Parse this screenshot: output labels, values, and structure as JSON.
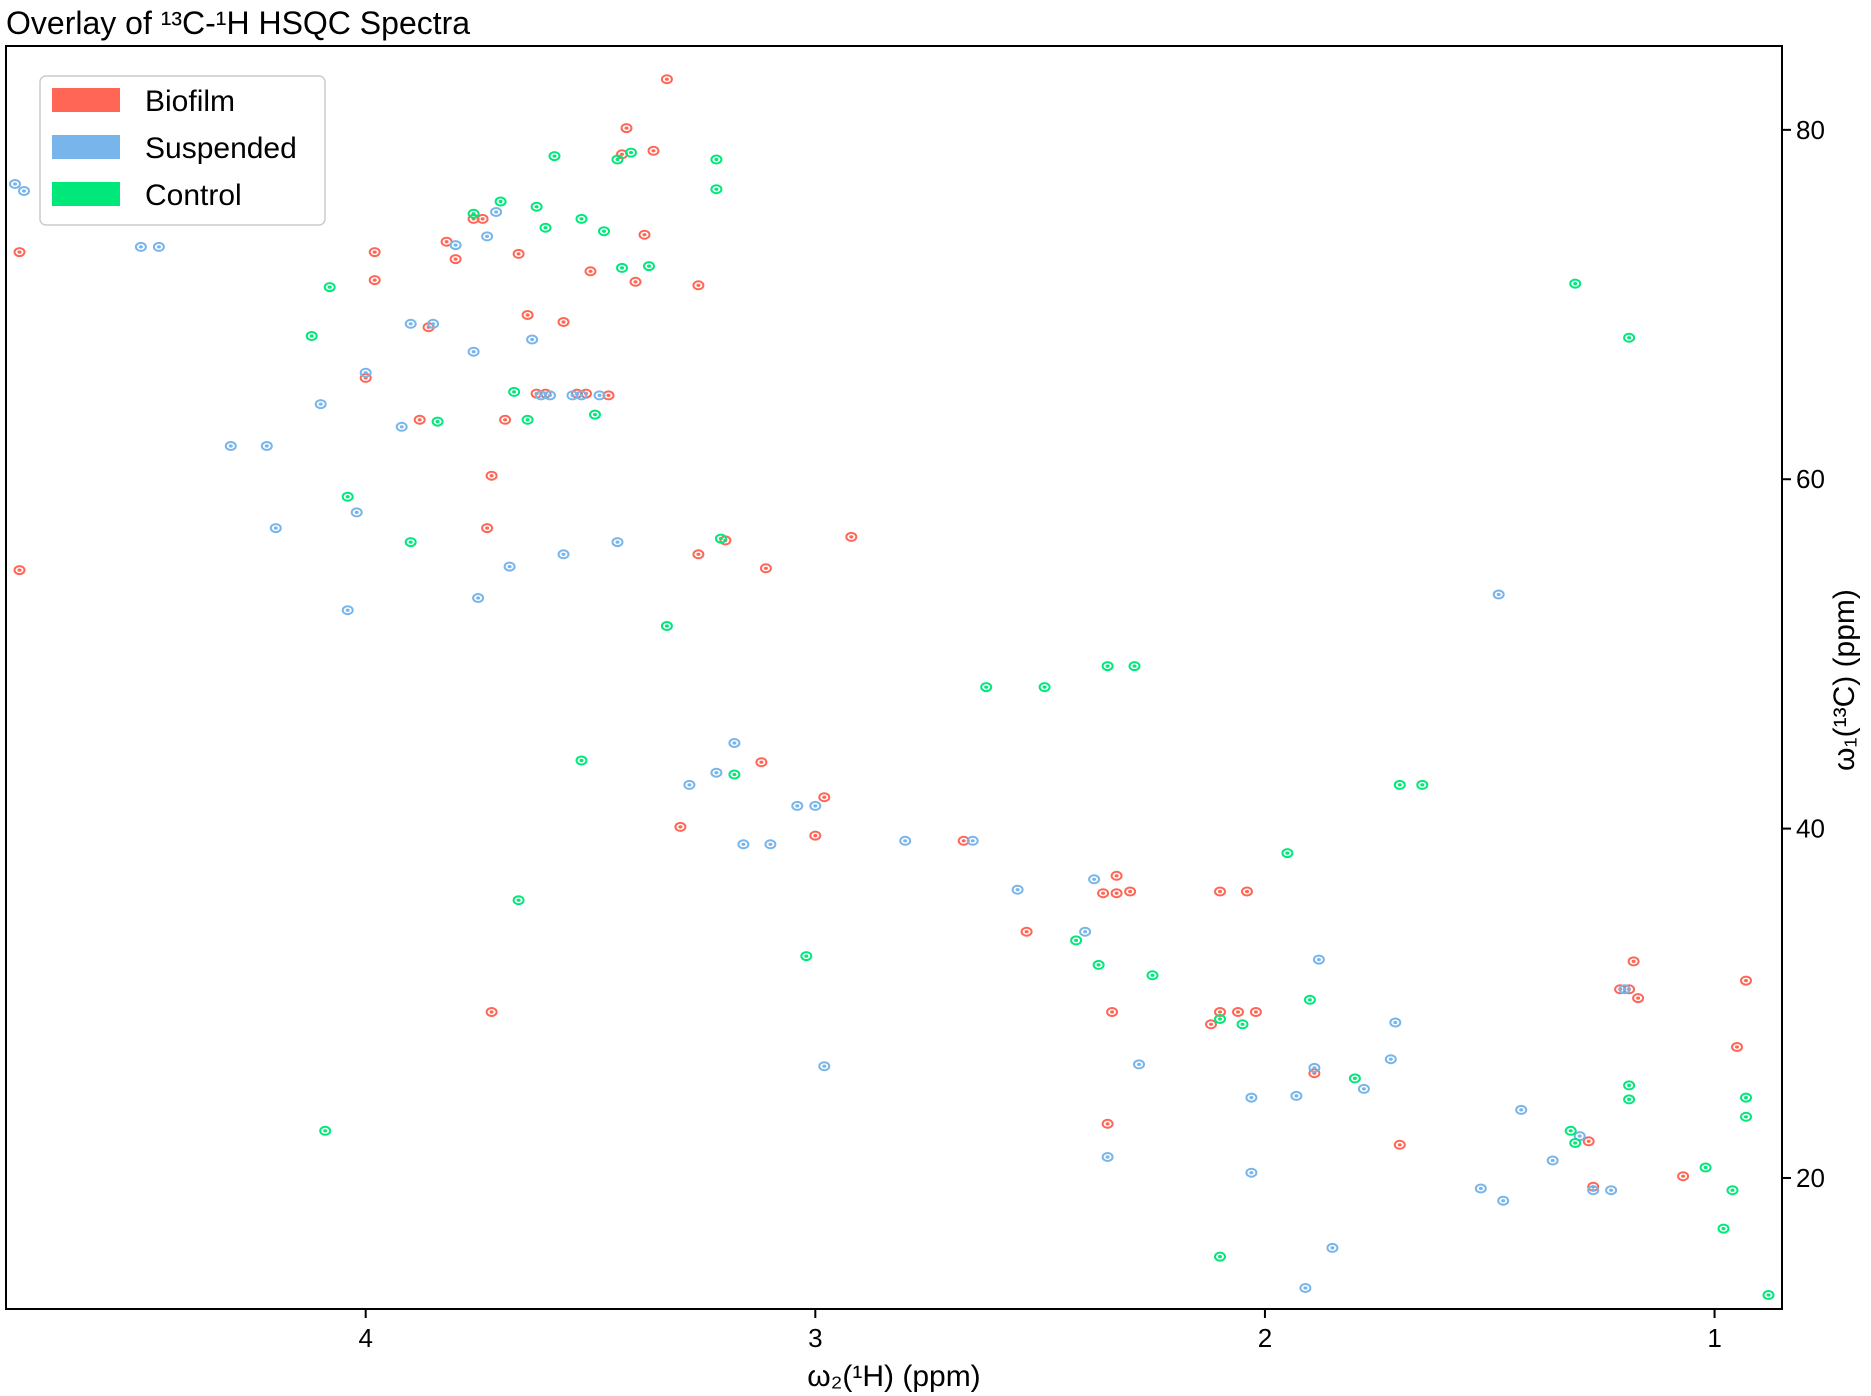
{
  "chart_data": {
    "type": "scatter",
    "title": "Overlay of ¹³C-¹H HSQC Spectra",
    "xlabel": "ω₂(¹H) (ppm)",
    "ylabel": "ω₁(¹³C) (ppm)",
    "xlim": [
      4.8,
      0.85
    ],
    "ylim": [
      84.8,
      12.5
    ],
    "x_reversed": true,
    "y_reversed": true,
    "y_axis_side": "right",
    "x_ticks": [
      4,
      3,
      2,
      1
    ],
    "y_ticks": [
      20,
      40,
      60,
      80
    ],
    "x_tick_labels": [
      "4",
      "3",
      "2",
      "1"
    ],
    "y_tick_labels": [
      "20",
      "40",
      "60",
      "80"
    ],
    "grid": false,
    "legend_position": "top-left",
    "series": [
      {
        "name": "Biofilm",
        "color": "#ff6655",
        "points": [
          [
            4.77,
            54.8
          ],
          [
            4.77,
            73.0
          ],
          [
            4.12,
            76.3
          ],
          [
            4.0,
            65.8
          ],
          [
            3.98,
            71.4
          ],
          [
            3.98,
            73.0
          ],
          [
            3.88,
            63.4
          ],
          [
            3.86,
            68.7
          ],
          [
            3.82,
            73.6
          ],
          [
            3.8,
            72.6
          ],
          [
            3.76,
            74.9
          ],
          [
            3.74,
            74.9
          ],
          [
            3.73,
            57.2
          ],
          [
            3.72,
            60.2
          ],
          [
            3.72,
            29.5
          ],
          [
            3.69,
            63.4
          ],
          [
            3.66,
            72.9
          ],
          [
            3.64,
            69.4
          ],
          [
            3.62,
            64.9
          ],
          [
            3.6,
            64.9
          ],
          [
            3.56,
            69.0
          ],
          [
            3.53,
            64.9
          ],
          [
            3.51,
            64.9
          ],
          [
            3.5,
            71.9
          ],
          [
            3.46,
            64.8
          ],
          [
            3.43,
            78.6
          ],
          [
            3.42,
            80.1
          ],
          [
            3.4,
            71.3
          ],
          [
            3.38,
            74.0
          ],
          [
            3.36,
            78.8
          ],
          [
            3.33,
            82.9
          ],
          [
            3.3,
            40.1
          ],
          [
            3.26,
            71.1
          ],
          [
            3.26,
            55.7
          ],
          [
            3.2,
            56.5
          ],
          [
            3.12,
            43.8
          ],
          [
            3.11,
            54.9
          ],
          [
            3.0,
            39.6
          ],
          [
            2.98,
            41.8
          ],
          [
            2.92,
            56.7
          ],
          [
            2.67,
            39.3
          ],
          [
            2.53,
            34.1
          ],
          [
            2.36,
            36.3
          ],
          [
            2.33,
            36.3
          ],
          [
            2.34,
            29.5
          ],
          [
            2.35,
            23.1
          ],
          [
            2.33,
            37.3
          ],
          [
            2.3,
            36.4
          ],
          [
            2.12,
            28.8
          ],
          [
            2.1,
            29.5
          ],
          [
            2.06,
            29.5
          ],
          [
            2.02,
            29.5
          ],
          [
            2.1,
            36.4
          ],
          [
            2.04,
            36.4
          ],
          [
            1.89,
            26.0
          ],
          [
            1.7,
            21.9
          ],
          [
            1.27,
            19.5
          ],
          [
            1.28,
            22.1
          ],
          [
            1.21,
            30.8
          ],
          [
            1.19,
            30.8
          ],
          [
            1.17,
            30.3
          ],
          [
            1.18,
            32.4
          ],
          [
            1.07,
            20.1
          ],
          [
            0.95,
            27.5
          ],
          [
            0.93,
            31.3
          ]
        ]
      },
      {
        "name": "Suspended",
        "color": "#77b5ea",
        "points": [
          [
            4.78,
            76.9
          ],
          [
            4.76,
            76.5
          ],
          [
            4.5,
            73.3
          ],
          [
            4.46,
            73.3
          ],
          [
            4.3,
            61.9
          ],
          [
            4.22,
            61.9
          ],
          [
            4.2,
            57.2
          ],
          [
            4.1,
            64.3
          ],
          [
            4.04,
            52.5
          ],
          [
            4.02,
            58.1
          ],
          [
            4.0,
            66.1
          ],
          [
            3.92,
            63.0
          ],
          [
            3.9,
            68.9
          ],
          [
            3.85,
            68.9
          ],
          [
            3.8,
            73.4
          ],
          [
            3.76,
            67.3
          ],
          [
            3.75,
            53.2
          ],
          [
            3.73,
            73.9
          ],
          [
            3.71,
            75.3
          ],
          [
            3.68,
            55.0
          ],
          [
            3.63,
            68.0
          ],
          [
            3.61,
            64.8
          ],
          [
            3.59,
            64.8
          ],
          [
            3.56,
            55.7
          ],
          [
            3.54,
            64.8
          ],
          [
            3.52,
            64.8
          ],
          [
            3.48,
            64.8
          ],
          [
            3.44,
            56.4
          ],
          [
            3.28,
            42.5
          ],
          [
            3.22,
            43.2
          ],
          [
            3.18,
            44.9
          ],
          [
            3.16,
            39.1
          ],
          [
            3.1,
            39.1
          ],
          [
            3.04,
            41.3
          ],
          [
            3.0,
            41.3
          ],
          [
            2.98,
            26.4
          ],
          [
            2.8,
            39.3
          ],
          [
            2.65,
            39.3
          ],
          [
            2.55,
            36.5
          ],
          [
            2.4,
            34.1
          ],
          [
            2.38,
            37.1
          ],
          [
            2.35,
            21.2
          ],
          [
            2.28,
            26.5
          ],
          [
            2.03,
            20.3
          ],
          [
            2.03,
            24.6
          ],
          [
            1.93,
            24.7
          ],
          [
            1.89,
            26.3
          ],
          [
            1.78,
            25.1
          ],
          [
            1.72,
            26.8
          ],
          [
            1.71,
            28.9
          ],
          [
            1.88,
            32.5
          ],
          [
            1.52,
            19.4
          ],
          [
            1.47,
            18.7
          ],
          [
            1.43,
            23.9
          ],
          [
            1.36,
            21.0
          ],
          [
            1.3,
            22.4
          ],
          [
            1.27,
            19.3
          ],
          [
            1.23,
            19.3
          ],
          [
            1.2,
            30.8
          ],
          [
            1.85,
            16.0
          ],
          [
            1.91,
            13.7
          ],
          [
            1.48,
            53.4
          ]
        ]
      },
      {
        "name": "Control",
        "color": "#00e87a",
        "points": [
          [
            4.67,
            76.4
          ],
          [
            4.09,
            22.7
          ],
          [
            4.12,
            68.2
          ],
          [
            4.08,
            71.0
          ],
          [
            4.04,
            59.0
          ],
          [
            3.9,
            56.4
          ],
          [
            3.84,
            63.3
          ],
          [
            3.76,
            75.2
          ],
          [
            3.7,
            75.9
          ],
          [
            3.67,
            65.0
          ],
          [
            3.64,
            63.4
          ],
          [
            3.62,
            75.6
          ],
          [
            3.6,
            74.4
          ],
          [
            3.58,
            78.5
          ],
          [
            3.52,
            74.9
          ],
          [
            3.49,
            63.7
          ],
          [
            3.47,
            74.2
          ],
          [
            3.44,
            78.3
          ],
          [
            3.43,
            72.1
          ],
          [
            3.41,
            78.7
          ],
          [
            3.37,
            72.2
          ],
          [
            3.33,
            51.6
          ],
          [
            3.22,
            76.6
          ],
          [
            3.22,
            78.3
          ],
          [
            3.18,
            43.1
          ],
          [
            3.21,
            56.6
          ],
          [
            3.52,
            43.9
          ],
          [
            3.02,
            32.7
          ],
          [
            2.62,
            48.1
          ],
          [
            2.49,
            48.1
          ],
          [
            2.42,
            33.6
          ],
          [
            2.37,
            32.2
          ],
          [
            2.35,
            49.3
          ],
          [
            2.29,
            49.3
          ],
          [
            2.25,
            31.6
          ],
          [
            2.1,
            29.1
          ],
          [
            2.05,
            28.8
          ],
          [
            1.9,
            30.2
          ],
          [
            1.8,
            25.7
          ],
          [
            1.7,
            42.5
          ],
          [
            1.65,
            42.5
          ],
          [
            1.32,
            22.7
          ],
          [
            1.31,
            22.0
          ],
          [
            1.19,
            24.5
          ],
          [
            1.19,
            25.3
          ],
          [
            1.02,
            20.6
          ],
          [
            0.98,
            17.1
          ],
          [
            0.96,
            19.3
          ],
          [
            0.93,
            23.5
          ],
          [
            0.93,
            24.6
          ],
          [
            0.88,
            13.3
          ],
          [
            1.31,
            71.2
          ],
          [
            1.19,
            68.1
          ],
          [
            1.95,
            38.6
          ],
          [
            2.1,
            15.5
          ],
          [
            3.66,
            35.9
          ]
        ]
      }
    ]
  }
}
